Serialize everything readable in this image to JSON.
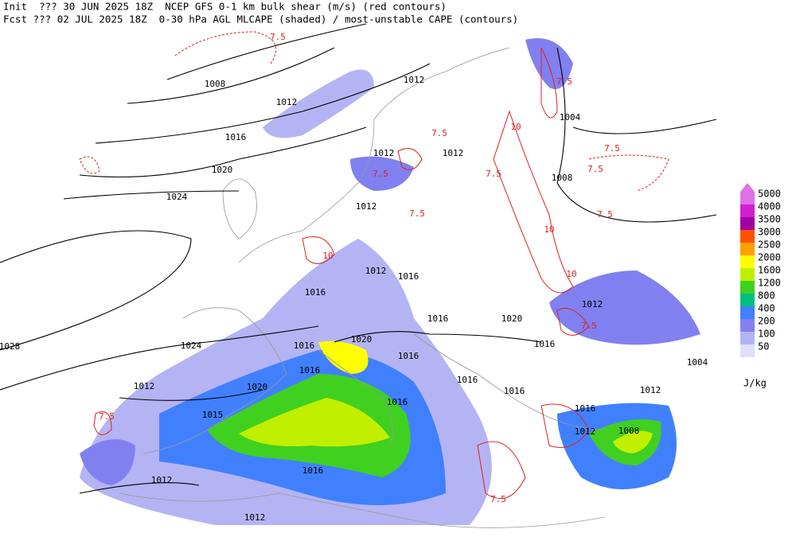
{
  "header": {
    "line1": "Init  ??? 30 JUN 2025 18Z  NCEP GFS 0-1 km bulk shear (m/s) (red contours)",
    "line2": "Fcst ??? 02 JUL 2025 18Z  0-30 hPa AGL MLCAPE (shaded) / most-unstable CAPE (contours)"
  },
  "legend": {
    "levels": [
      {
        "label": "5000",
        "color": "#e070e8"
      },
      {
        "label": "4000",
        "color": "#d020d0"
      },
      {
        "label": "3500",
        "color": "#a000a0"
      },
      {
        "label": "3000",
        "color": "#ff5000"
      },
      {
        "label": "2500",
        "color": "#ffa000"
      },
      {
        "label": "2000",
        "color": "#ffff00"
      },
      {
        "label": "1600",
        "color": "#c0f000"
      },
      {
        "label": "1200",
        "color": "#40d020"
      },
      {
        "label": "800",
        "color": "#00c080"
      },
      {
        "label": "400",
        "color": "#4080ff"
      },
      {
        "label": "200",
        "color": "#8080f0"
      },
      {
        "label": "100",
        "color": "#b4b4f4"
      },
      {
        "label": "50",
        "color": "#e0e0fa"
      }
    ],
    "unit": "J/kg"
  },
  "isobar_labels": [
    "1008",
    "1012",
    "1012",
    "1004",
    "1016",
    "1012",
    "1012",
    "1020",
    "1008",
    "1024",
    "1012",
    "1012",
    "1016",
    "1016",
    "1016",
    "1020",
    "1012",
    "1028",
    "1024",
    "1020",
    "1016",
    "1016",
    "1016",
    "1016",
    "1004",
    "1012",
    "1020",
    "1016",
    "1016",
    "1012",
    "1016",
    "1015",
    "1016",
    "1012",
    "1008",
    "1012",
    "1016",
    "1012"
  ],
  "shear_labels": [
    "7.5",
    "7.5",
    "7.5",
    "7.5",
    "7.5",
    "7.5",
    "7.5",
    "7.5",
    "7.5",
    "10",
    "10",
    "10",
    "10",
    "7.5",
    "7.5",
    "7.5"
  ]
}
